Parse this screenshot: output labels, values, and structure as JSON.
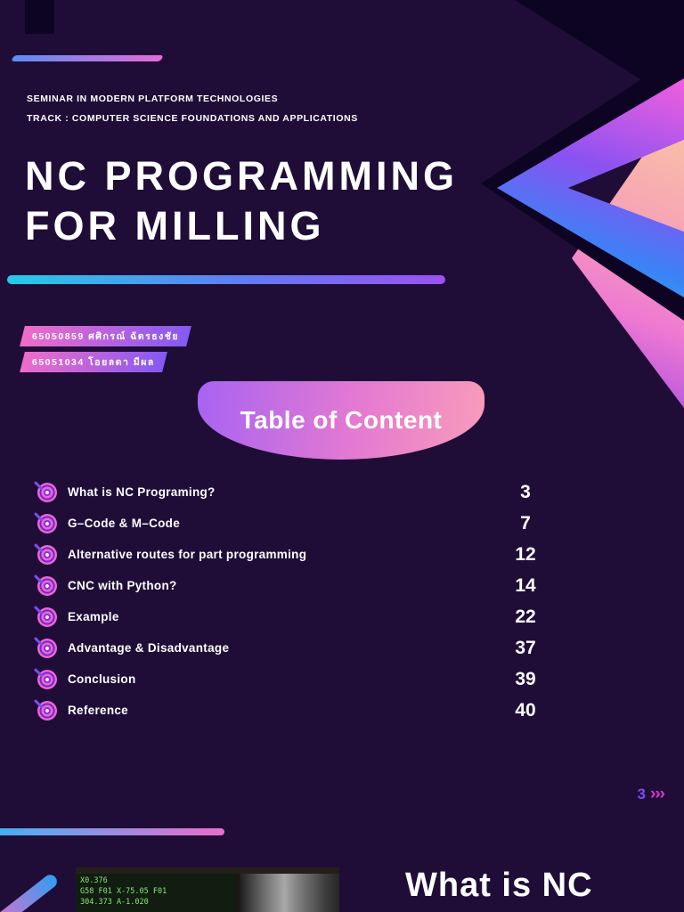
{
  "slide1": {
    "eyebrow_line1": "SEMINAR IN MODERN PLATFORM TECHNOLOGIES",
    "eyebrow_line2": "TRACK : COMPUTER SCIENCE FOUNDATIONS AND APPLICATIONS",
    "title_line1": "NC PROGRAMMING",
    "title_line2": "FOR MILLING",
    "authors": [
      "65050859 ศศิกรณ์ ฉัตรธงชัย",
      "65051034 โอยลดา มีผล"
    ],
    "toc_title": "Table of Content",
    "toc_items": [
      {
        "label": "What is NC Programing?",
        "page": "3"
      },
      {
        "label": "G–Code & M–Code",
        "page": "7"
      },
      {
        "label": "Alternative routes for part programming",
        "page": "12"
      },
      {
        "label": "CNC with Python?",
        "page": "14"
      },
      {
        "label": "Example",
        "page": "22"
      },
      {
        "label": "Advantage &  Disadvantage",
        "page": "37"
      },
      {
        "label": "Conclusion",
        "page": "39"
      },
      {
        "label": "Reference",
        "page": "40"
      }
    ],
    "page_number": "3",
    "page_chevrons": "›››"
  },
  "slide2": {
    "title": "What is NC",
    "photo_lines": [
      "X0.376",
      "G58 F01  X-75.05 F01",
      "304.373  A-1.020"
    ]
  },
  "colors": {
    "background": "#1f0d38",
    "dark_shape": "#0d0423",
    "accent_cyan": "#25cbe9",
    "accent_blue": "#3b82f6",
    "accent_purple": "#8a52f2",
    "accent_pink": "#ee5ede",
    "accent_peach": "#fbc9a0",
    "page_marker_purple": "#7b4cf0",
    "page_marker_magenta": "#d836ce"
  }
}
